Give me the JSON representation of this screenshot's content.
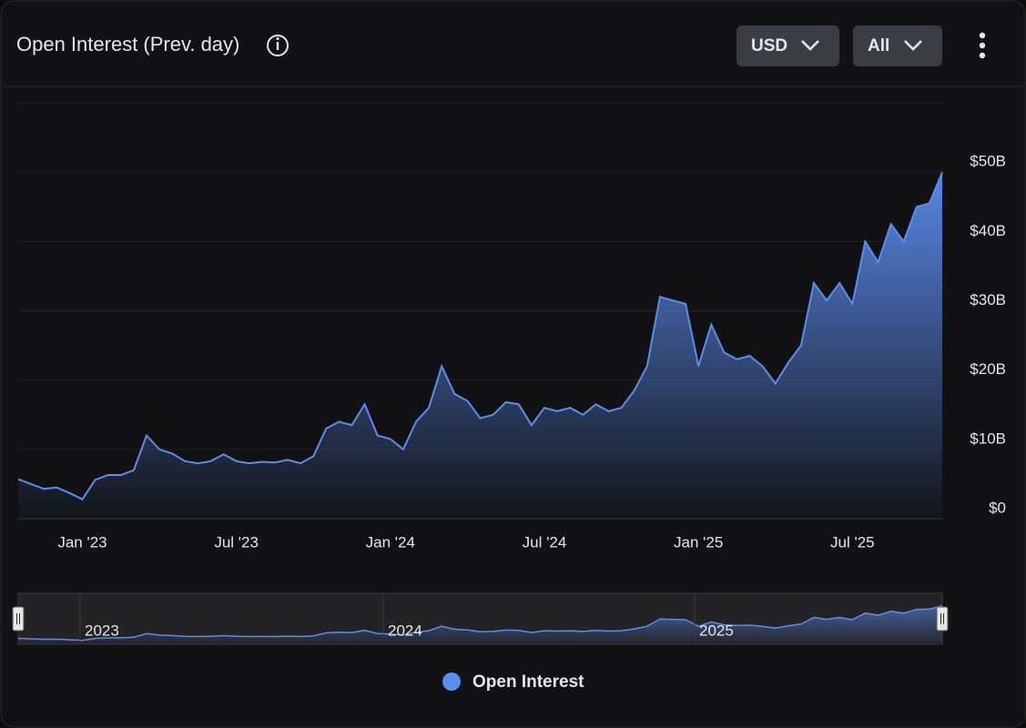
{
  "chart_data": {
    "type": "area",
    "title": "Open Interest (Prev. day)",
    "categories": [
      null,
      null,
      null,
      null,
      null,
      "Jan '23",
      null,
      null,
      null,
      null,
      null,
      null,
      null,
      null,
      null,
      null,
      null,
      "Jul '23",
      null,
      null,
      null,
      null,
      null,
      null,
      null,
      null,
      null,
      null,
      null,
      "Jan '24",
      null,
      null,
      null,
      null,
      null,
      null,
      null,
      null,
      null,
      null,
      null,
      "Jul '24",
      null,
      null,
      null,
      null,
      null,
      null,
      null,
      null,
      null,
      null,
      null,
      "Jan '25",
      null,
      null,
      null,
      null,
      null,
      null,
      null,
      null,
      null,
      null,
      null,
      "Jul '25",
      null,
      null,
      null,
      null,
      null,
      null,
      null
    ],
    "series": [
      {
        "name": "Open Interest",
        "color": "#5b8def",
        "values": [
          5.7,
          5.0,
          4.3,
          4.5,
          3.7,
          2.8,
          5.6,
          6.3,
          6.3,
          7.0,
          12.0,
          10.0,
          9.4,
          8.3,
          8.0,
          8.3,
          9.3,
          8.3,
          8.0,
          8.2,
          8.1,
          8.5,
          8.0,
          9.0,
          13.0,
          14.0,
          13.5,
          16.5,
          12.0,
          11.5,
          10.0,
          14.0,
          16.0,
          22.0,
          18.0,
          17.0,
          14.5,
          15.0,
          16.8,
          16.5,
          13.5,
          16.0,
          15.5,
          16.0,
          15.0,
          16.5,
          15.5,
          16.0,
          18.5,
          22.0,
          32.0,
          31.5,
          31.0,
          22.0,
          28.0,
          24.0,
          23.0,
          23.5,
          22.0,
          19.5,
          22.5,
          25.0,
          34.0,
          31.5,
          34.0,
          31.0,
          40.0,
          37.0,
          42.5,
          40.0,
          45.0,
          45.5,
          50.0
        ]
      }
    ],
    "ylim": [
      0,
      60
    ],
    "yticks": [
      {
        "value": 0,
        "label": "$0"
      },
      {
        "value": 10,
        "label": "$10B"
      },
      {
        "value": 20,
        "label": "$20B"
      },
      {
        "value": 30,
        "label": "$30B"
      },
      {
        "value": 40,
        "label": "$40B"
      },
      {
        "value": 50,
        "label": "$50B"
      }
    ],
    "grid": true
  },
  "controls": {
    "currency": "USD",
    "range": "All"
  },
  "navigator": {
    "labels": [
      "2023",
      "2024",
      "2025"
    ]
  }
}
